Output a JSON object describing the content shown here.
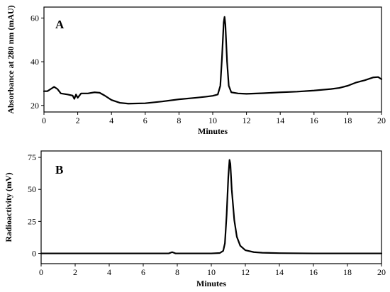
{
  "chart_data": [
    {
      "type": "line",
      "panel_label": "A",
      "xlabel": "Minutes",
      "ylabel": "Absorbance at 280 nm (mAU)",
      "xlim": [
        0,
        20
      ],
      "ylim": [
        17,
        65
      ],
      "xticks": [
        "0",
        "2",
        "4",
        "6",
        "8",
        "10",
        "12",
        "14",
        "16",
        "18",
        "20"
      ],
      "yticks": [
        "20",
        "40",
        "60"
      ],
      "grid": false,
      "series": [
        {
          "points": [
            [
              0,
              26.5
            ],
            [
              0.2,
              26.5
            ],
            [
              0.4,
              27.5
            ],
            [
              0.6,
              28.5
            ],
            [
              0.8,
              27.5
            ],
            [
              1.0,
              25.5
            ],
            [
              1.4,
              25
            ],
            [
              1.7,
              24.5
            ],
            [
              1.8,
              23
            ],
            [
              1.9,
              25
            ],
            [
              2.0,
              23.5
            ],
            [
              2.2,
              25.5
            ],
            [
              2.6,
              25.5
            ],
            [
              3.0,
              26
            ],
            [
              3.3,
              25.8
            ],
            [
              3.6,
              24.5
            ],
            [
              4.0,
              22.5
            ],
            [
              4.5,
              21.2
            ],
            [
              5.0,
              20.8
            ],
            [
              6.0,
              21.0
            ],
            [
              7.0,
              21.8
            ],
            [
              8.0,
              22.8
            ],
            [
              9.0,
              23.5
            ],
            [
              9.6,
              24.0
            ],
            [
              10.0,
              24.4
            ],
            [
              10.3,
              25.0
            ],
            [
              10.45,
              29
            ],
            [
              10.55,
              42
            ],
            [
              10.65,
              58
            ],
            [
              10.7,
              60.5
            ],
            [
              10.75,
              57
            ],
            [
              10.85,
              40
            ],
            [
              10.95,
              29
            ],
            [
              11.1,
              26
            ],
            [
              11.5,
              25.5
            ],
            [
              12.0,
              25.3
            ],
            [
              13.0,
              25.6
            ],
            [
              14.0,
              26.0
            ],
            [
              15.0,
              26.3
            ],
            [
              16.0,
              26.8
            ],
            [
              17.0,
              27.5
            ],
            [
              17.5,
              28.0
            ],
            [
              18.0,
              29.0
            ],
            [
              18.5,
              30.5
            ],
            [
              19.0,
              31.5
            ],
            [
              19.5,
              32.8
            ],
            [
              19.8,
              33.0
            ],
            [
              20.0,
              32.0
            ]
          ]
        }
      ]
    },
    {
      "type": "line",
      "panel_label": "B",
      "xlabel": "Minutes",
      "ylabel": "Radioactivity (mV)",
      "xlim": [
        0,
        20
      ],
      "ylim": [
        -8,
        80
      ],
      "xticks": [
        "0",
        "2",
        "4",
        "6",
        "8",
        "10",
        "12",
        "14",
        "16",
        "18",
        "20"
      ],
      "yticks": [
        "0",
        "25",
        "50",
        "75"
      ],
      "grid": false,
      "series": [
        {
          "points": [
            [
              0,
              0
            ],
            [
              3.0,
              0
            ],
            [
              6.0,
              0
            ],
            [
              7.5,
              0
            ],
            [
              7.7,
              1.0
            ],
            [
              7.9,
              0
            ],
            [
              9.0,
              0
            ],
            [
              10.0,
              0
            ],
            [
              10.5,
              0.3
            ],
            [
              10.7,
              2.0
            ],
            [
              10.8,
              8
            ],
            [
              10.9,
              30
            ],
            [
              11.0,
              60
            ],
            [
              11.07,
              73
            ],
            [
              11.12,
              70
            ],
            [
              11.2,
              50
            ],
            [
              11.35,
              26
            ],
            [
              11.5,
              13
            ],
            [
              11.7,
              6
            ],
            [
              12.0,
              2.5
            ],
            [
              12.5,
              1.0
            ],
            [
              13.0,
              0.5
            ],
            [
              14.0,
              0.2
            ],
            [
              16.0,
              0
            ],
            [
              20.0,
              0
            ]
          ]
        }
      ]
    }
  ]
}
